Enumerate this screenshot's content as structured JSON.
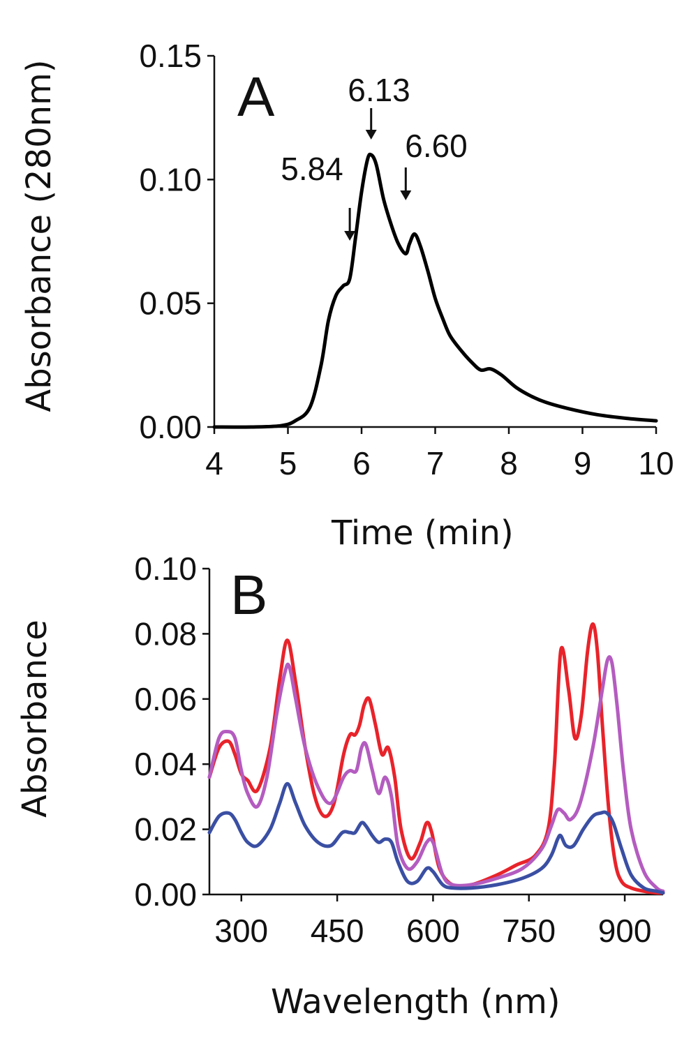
{
  "chart_data": [
    {
      "panel": "A",
      "type": "line",
      "xlabel": "Time (min)",
      "ylabel": "Absorbance (280nm)",
      "xlim": [
        4,
        10
      ],
      "ylim": [
        0,
        0.15
      ],
      "xticks": [
        "4",
        "5",
        "6",
        "7",
        "8",
        "9",
        "10"
      ],
      "yticks": [
        "0.00",
        "0.05",
        "0.10",
        "0.15"
      ],
      "series": [
        {
          "color": "#000000",
          "x": [
            4.0,
            4.5,
            4.9,
            5.1,
            5.3,
            5.45,
            5.55,
            5.65,
            5.75,
            5.84,
            5.92,
            6.0,
            6.08,
            6.13,
            6.2,
            6.3,
            6.4,
            6.5,
            6.6,
            6.65,
            6.72,
            6.8,
            6.9,
            7.0,
            7.1,
            7.2,
            7.35,
            7.5,
            7.62,
            7.75,
            7.9,
            8.1,
            8.3,
            8.5,
            8.8,
            9.2,
            9.6,
            10.0
          ],
          "y": [
            0.0,
            0.0,
            0.0005,
            0.0025,
            0.008,
            0.025,
            0.043,
            0.053,
            0.057,
            0.06,
            0.077,
            0.095,
            0.108,
            0.11,
            0.106,
            0.092,
            0.082,
            0.074,
            0.07,
            0.074,
            0.078,
            0.073,
            0.063,
            0.052,
            0.044,
            0.037,
            0.031,
            0.026,
            0.023,
            0.0235,
            0.021,
            0.016,
            0.0125,
            0.01,
            0.0075,
            0.005,
            0.0035,
            0.0025
          ]
        }
      ],
      "annotations": [
        {
          "text": "6.13",
          "x": 6.13
        },
        {
          "text": "5.84",
          "x": 5.84
        },
        {
          "text": "6.60",
          "x": 6.6
        }
      ]
    },
    {
      "panel": "B",
      "type": "line",
      "xlabel": "Wavelength (nm)",
      "ylabel": "Absorbance",
      "xlim": [
        250,
        960
      ],
      "ylim": [
        0,
        0.1
      ],
      "xticks": [
        "300",
        "450",
        "600",
        "750",
        "900"
      ],
      "yticks": [
        "0.00",
        "0.02",
        "0.04",
        "0.06",
        "0.08",
        "0.10"
      ],
      "series": [
        {
          "color": "#e8232a",
          "x": [
            250,
            265,
            280,
            290,
            300,
            310,
            325,
            345,
            360,
            372,
            385,
            400,
            415,
            430,
            445,
            460,
            470,
            478,
            485,
            492,
            500,
            510,
            520,
            530,
            540,
            550,
            565,
            580,
            590,
            598,
            610,
            630,
            660,
            700,
            730,
            760,
            780,
            790,
            800,
            812,
            822,
            832,
            842,
            850,
            857,
            865,
            875,
            885,
            895,
            910,
            930,
            950,
            960
          ],
          "y": [
            0.036,
            0.045,
            0.047,
            0.043,
            0.037,
            0.035,
            0.032,
            0.045,
            0.066,
            0.078,
            0.065,
            0.045,
            0.03,
            0.024,
            0.028,
            0.043,
            0.049,
            0.049,
            0.052,
            0.058,
            0.06,
            0.052,
            0.043,
            0.045,
            0.036,
            0.02,
            0.011,
            0.016,
            0.022,
            0.019,
            0.008,
            0.003,
            0.003,
            0.006,
            0.009,
            0.012,
            0.02,
            0.04,
            0.075,
            0.063,
            0.048,
            0.055,
            0.075,
            0.083,
            0.075,
            0.052,
            0.026,
            0.01,
            0.004,
            0.002,
            0.001,
            0.0005,
            0.0005
          ]
        },
        {
          "color": "#b45cc0",
          "x": [
            250,
            265,
            278,
            290,
            300,
            310,
            325,
            340,
            355,
            368,
            375,
            385,
            400,
            420,
            440,
            460,
            470,
            480,
            488,
            495,
            505,
            515,
            525,
            535,
            545,
            560,
            575,
            590,
            600,
            615,
            630,
            660,
            700,
            740,
            770,
            785,
            795,
            805,
            815,
            830,
            850,
            865,
            873,
            880,
            888,
            898,
            910,
            930,
            950,
            960
          ],
          "y": [
            0.036,
            0.048,
            0.05,
            0.048,
            0.038,
            0.031,
            0.027,
            0.036,
            0.055,
            0.068,
            0.07,
            0.06,
            0.045,
            0.033,
            0.028,
            0.036,
            0.038,
            0.038,
            0.045,
            0.046,
            0.038,
            0.031,
            0.036,
            0.03,
            0.015,
            0.008,
            0.01,
            0.016,
            0.016,
            0.006,
            0.003,
            0.003,
            0.005,
            0.008,
            0.014,
            0.021,
            0.026,
            0.025,
            0.023,
            0.028,
            0.045,
            0.063,
            0.072,
            0.071,
            0.058,
            0.038,
            0.02,
            0.007,
            0.002,
            0.001
          ]
        },
        {
          "color": "#3a4fa3",
          "x": [
            250,
            265,
            280,
            290,
            300,
            310,
            325,
            345,
            360,
            372,
            385,
            400,
            420,
            440,
            458,
            470,
            478,
            488,
            495,
            505,
            515,
            525,
            535,
            545,
            560,
            575,
            590,
            600,
            615,
            630,
            660,
            700,
            740,
            770,
            785,
            795,
            800,
            808,
            820,
            835,
            850,
            862,
            872,
            882,
            895,
            910,
            930,
            950,
            960
          ],
          "y": [
            0.019,
            0.024,
            0.025,
            0.023,
            0.019,
            0.016,
            0.015,
            0.02,
            0.028,
            0.034,
            0.028,
            0.021,
            0.016,
            0.015,
            0.019,
            0.019,
            0.019,
            0.022,
            0.021,
            0.018,
            0.016,
            0.017,
            0.016,
            0.01,
            0.004,
            0.004,
            0.008,
            0.007,
            0.003,
            0.002,
            0.002,
            0.003,
            0.005,
            0.008,
            0.012,
            0.017,
            0.018,
            0.015,
            0.015,
            0.02,
            0.024,
            0.025,
            0.025,
            0.022,
            0.014,
            0.006,
            0.002,
            0.001,
            0.0005
          ]
        }
      ]
    }
  ]
}
